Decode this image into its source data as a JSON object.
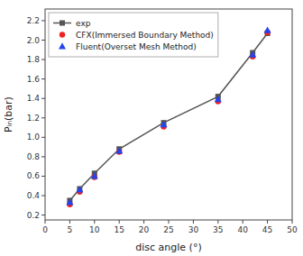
{
  "chart_data": {
    "type": "line",
    "x_label": "disc angle (°)",
    "y_label": "Pᵢₙ(bar)",
    "x": [
      5,
      7,
      10,
      15,
      24,
      35,
      42,
      45
    ],
    "series": [
      {
        "name": "exp",
        "type": "line",
        "marker": "square",
        "color": "#555555",
        "values": [
          0.35,
          0.47,
          0.63,
          0.88,
          1.15,
          1.42,
          1.87,
          2.07
        ]
      },
      {
        "name": "CFX(Immersed Boundary Method)",
        "type": "scatter",
        "marker": "circle",
        "color": "#ee2222",
        "values": [
          0.31,
          0.44,
          0.59,
          0.85,
          1.11,
          1.37,
          1.83,
          2.08
        ]
      },
      {
        "name": "Fluent(Overset Mesh Method)",
        "type": "scatter",
        "marker": "triangle",
        "color": "#2244ee",
        "values": [
          0.33,
          0.46,
          0.6,
          0.86,
          1.13,
          1.39,
          1.85,
          2.1
        ]
      }
    ],
    "xlim": [
      0,
      50
    ],
    "ylim": [
      0.15,
      2.32
    ],
    "xticks": [
      0,
      5,
      10,
      15,
      20,
      25,
      30,
      35,
      40,
      45,
      50
    ],
    "yticks": [
      0.2,
      0.4,
      0.6,
      0.8,
      {
        "value": 1.0,
        "label": "1.0"
      },
      1.2,
      1.4,
      1.6,
      1.8,
      {
        "value": 2.0,
        "label": "2.0"
      },
      2.2
    ],
    "grid": false,
    "legend": "upper left"
  }
}
